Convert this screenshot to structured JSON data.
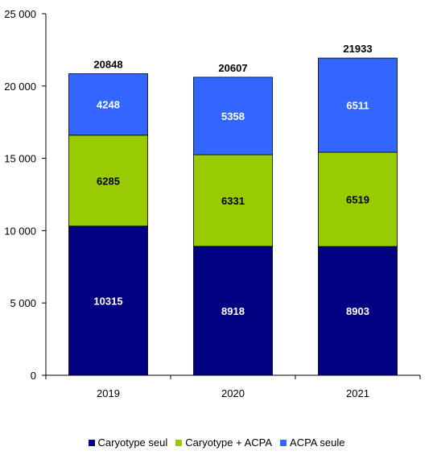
{
  "chart_data": {
    "type": "bar",
    "stacked": true,
    "categories": [
      "2019",
      "2020",
      "2021"
    ],
    "series": [
      {
        "name": "Caryotype seul",
        "values": [
          10315,
          8918,
          8903
        ],
        "color": "#000080",
        "label_color": "#ffffff"
      },
      {
        "name": "Caryotype + ACPA",
        "values": [
          6285,
          6331,
          6519
        ],
        "color": "#99cc00",
        "label_color": "#000000"
      },
      {
        "name": "ACPA seule",
        "values": [
          4248,
          5358,
          6511
        ],
        "color": "#3366ff",
        "label_color": "#ffffff"
      }
    ],
    "totals": [
      20848,
      20607,
      21933
    ],
    "yticks": [
      0,
      5000,
      10000,
      15000,
      20000,
      25000
    ],
    "ytick_labels": [
      "0",
      "5 000",
      "10 000",
      "15 000",
      "20 000",
      "25 000"
    ],
    "ylim": [
      0,
      25000
    ],
    "title": "",
    "xlabel": "",
    "ylabel": "",
    "grid": false,
    "legend_position": "bottom"
  }
}
